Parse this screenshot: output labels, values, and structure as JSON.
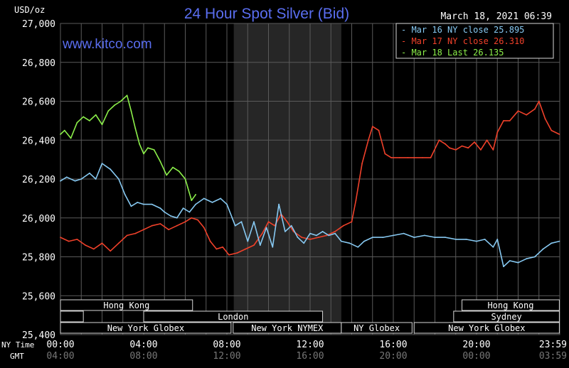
{
  "header": {
    "unit_label": "USD/oz",
    "title": "24 Hour Spot Silver (Bid)",
    "timestamp": "March 18, 2021 06:39",
    "watermark": "www.kitco.com"
  },
  "colors": {
    "background": "#000000",
    "grid": "#5a5a5a",
    "title": "#5a6ef0",
    "watermark": "#5a6ef0",
    "mar16": "#87c9f2",
    "mar17": "#f0412a",
    "mar18": "#8cf04a",
    "shade": "#262626",
    "session_border": "#d8d8d8"
  },
  "chart_data": {
    "type": "line",
    "title": "24 Hour Spot Silver (Bid)",
    "ylabel": "USD/oz",
    "ylim": [
      25.4,
      27.0
    ],
    "xlim": [
      0,
      24
    ],
    "grid": true,
    "legend_position": "top-right",
    "yticks": [
      "27,000",
      "26,800",
      "26,600",
      "26,400",
      "26,200",
      "26,000",
      "25,800",
      "25,600",
      "25,400"
    ],
    "ytick_values": [
      27.0,
      26.8,
      26.6,
      26.4,
      26.2,
      26.0,
      25.8,
      25.6,
      25.4
    ],
    "xticks_ny": [
      "00:00",
      "04:00",
      "08:00",
      "12:00",
      "16:00",
      "20:00",
      "23:59"
    ],
    "xticks_gmt": [
      "04:00",
      "08:00",
      "12:00",
      "16:00",
      "20:00",
      "00:00",
      "03:59"
    ],
    "xtick_hours": [
      0,
      4,
      8,
      12,
      16,
      20,
      23.98
    ],
    "x_row_labels": [
      "NY Time",
      "GMT"
    ],
    "shaded_hours": [
      8.33,
      13.5
    ],
    "series": [
      {
        "name": "Mar 16 NY close 25.895",
        "color_key": "mar16",
        "x": [
          0,
          0.3,
          0.7,
          1.0,
          1.4,
          1.7,
          2.0,
          2.4,
          2.8,
          3.1,
          3.4,
          3.7,
          4.0,
          4.4,
          4.8,
          5.0,
          5.3,
          5.6,
          5.9,
          6.2,
          6.5,
          6.9,
          7.3,
          7.7,
          8.0,
          8.4,
          8.7,
          9.0,
          9.3,
          9.6,
          9.9,
          10.2,
          10.5,
          10.8,
          11.1,
          11.4,
          11.7,
          12.0,
          12.3,
          12.6,
          12.9,
          13.2,
          13.5,
          13.9,
          14.3,
          14.6,
          15.0,
          15.5,
          16.0,
          16.5,
          17.0,
          17.5,
          18.0,
          18.5,
          19.0,
          19.5,
          20.0,
          20.4,
          20.8,
          21.0,
          21.3,
          21.6,
          22.0,
          22.4,
          22.8,
          23.2,
          23.6,
          23.98
        ],
        "values": [
          26.19,
          26.21,
          26.19,
          26.2,
          26.23,
          26.2,
          26.28,
          26.25,
          26.2,
          26.12,
          26.06,
          26.08,
          26.07,
          26.07,
          26.05,
          26.03,
          26.01,
          26.0,
          26.05,
          26.03,
          26.07,
          26.1,
          26.08,
          26.1,
          26.07,
          25.96,
          25.98,
          25.88,
          25.98,
          25.86,
          25.95,
          25.85,
          26.07,
          25.93,
          25.96,
          25.9,
          25.87,
          25.92,
          25.91,
          25.93,
          25.91,
          25.92,
          25.88,
          25.87,
          25.85,
          25.88,
          25.9,
          25.9,
          25.91,
          25.92,
          25.9,
          25.91,
          25.9,
          25.9,
          25.89,
          25.89,
          25.88,
          25.89,
          25.85,
          25.89,
          25.75,
          25.78,
          25.77,
          25.79,
          25.8,
          25.84,
          25.87,
          25.88
        ]
      },
      {
        "name": "Mar 17 NY close 26.310",
        "color_key": "mar17",
        "x": [
          0,
          0.4,
          0.8,
          1.2,
          1.6,
          2.0,
          2.4,
          2.8,
          3.2,
          3.6,
          4.0,
          4.4,
          4.8,
          5.2,
          5.6,
          6.0,
          6.3,
          6.6,
          6.9,
          7.2,
          7.5,
          7.8,
          8.1,
          8.5,
          8.9,
          9.3,
          9.7,
          10.0,
          10.3,
          10.6,
          10.9,
          11.2,
          11.6,
          12.0,
          12.4,
          12.8,
          13.2,
          13.6,
          14.0,
          14.2,
          14.5,
          14.8,
          15.0,
          15.3,
          15.6,
          15.9,
          16.3,
          16.7,
          17.0,
          17.4,
          17.8,
          18.2,
          18.5,
          18.7,
          19.0,
          19.3,
          19.6,
          19.9,
          20.2,
          20.5,
          20.8,
          21.0,
          21.3,
          21.6,
          22.0,
          22.4,
          22.8,
          23.0,
          23.3,
          23.6,
          23.98
        ],
        "values": [
          25.9,
          25.88,
          25.89,
          25.86,
          25.84,
          25.87,
          25.83,
          25.87,
          25.91,
          25.92,
          25.94,
          25.96,
          25.97,
          25.94,
          25.96,
          25.98,
          26.0,
          25.99,
          25.95,
          25.88,
          25.84,
          25.85,
          25.81,
          25.82,
          25.84,
          25.86,
          25.92,
          25.98,
          25.96,
          26.02,
          25.98,
          25.93,
          25.9,
          25.89,
          25.9,
          25.91,
          25.93,
          25.96,
          25.98,
          26.09,
          26.28,
          26.4,
          26.47,
          26.45,
          26.33,
          26.31,
          26.31,
          26.31,
          26.31,
          26.31,
          26.31,
          26.4,
          26.38,
          26.36,
          26.35,
          26.37,
          26.36,
          26.39,
          26.35,
          26.4,
          26.35,
          26.44,
          26.5,
          26.5,
          26.55,
          26.53,
          26.56,
          26.6,
          26.51,
          26.45,
          26.43
        ]
      },
      {
        "name": "Mar 18 Last 26.135",
        "color_key": "mar18",
        "x": [
          0,
          0.2,
          0.5,
          0.8,
          1.1,
          1.4,
          1.7,
          2.0,
          2.3,
          2.6,
          2.9,
          3.2,
          3.4,
          3.6,
          3.8,
          4.0,
          4.2,
          4.5,
          4.8,
          5.1,
          5.4,
          5.7,
          6.0,
          6.3,
          6.5
        ],
        "values": [
          26.43,
          26.45,
          26.41,
          26.49,
          26.52,
          26.5,
          26.53,
          26.48,
          26.55,
          26.58,
          26.6,
          26.63,
          26.55,
          26.46,
          26.38,
          26.33,
          26.36,
          26.35,
          26.29,
          26.22,
          26.26,
          26.24,
          26.2,
          26.09,
          26.12
        ]
      }
    ]
  },
  "sessions": [
    {
      "label": "Hong Kong",
      "row": 0,
      "start": 0,
      "end": 6.35
    },
    {
      "label": "Hong Kong",
      "row": 0,
      "start": 19.3,
      "end": 23.98
    },
    {
      "label": "",
      "row": 1,
      "start": 0,
      "end": 1.1
    },
    {
      "label": "London",
      "row": 1,
      "start": 4.0,
      "end": 12.6
    },
    {
      "label": "Sydney",
      "row": 1,
      "start": 18.9,
      "end": 23.98
    },
    {
      "label": "New York Globex",
      "row": 2,
      "start": 0,
      "end": 8.2
    },
    {
      "label": "New York NYMEX",
      "row": 2,
      "start": 8.3,
      "end": 13.5
    },
    {
      "label": "NY Globex",
      "row": 2,
      "start": 13.5,
      "end": 16.9
    },
    {
      "label": "New York Globex",
      "row": 2,
      "start": 17.0,
      "end": 23.98
    }
  ]
}
